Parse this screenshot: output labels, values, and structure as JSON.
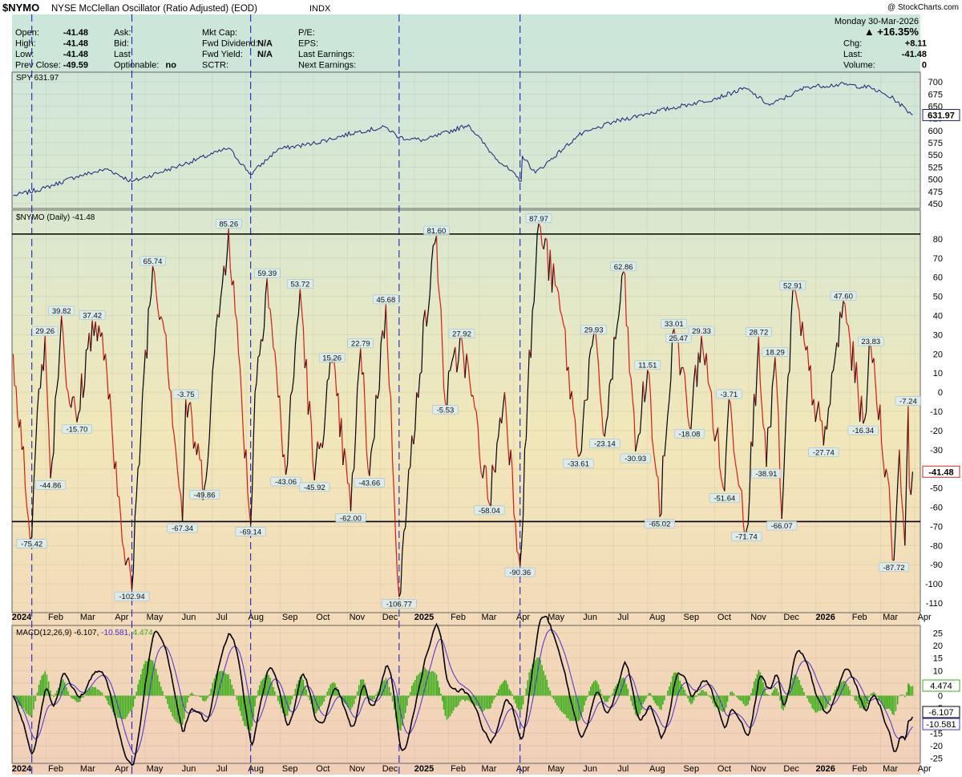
{
  "header": {
    "symbol": "$NYMO",
    "name": "NYSE McClellan Oscillator (Ratio Adjusted) (EOD)",
    "exchange": "INDX",
    "watermark": "@ StockCharts.com",
    "date": "Monday  30-Mar-2026",
    "pct_change": "▲ +16.35%",
    "quote_fields": [
      {
        "k": "Open:",
        "v": "-41.48"
      },
      {
        "k": "High:",
        "v": "-41.48"
      },
      {
        "k": "Low:",
        "v": "-41.48"
      },
      {
        "k": "Prev Close:",
        "v": "-49.59"
      },
      {
        "k": "Ask:",
        "v": ""
      },
      {
        "k": "Bid:",
        "v": ""
      },
      {
        "k": "Last",
        "v": ""
      },
      {
        "k": "Optionable:",
        "v": "no"
      },
      {
        "k": "Mkt Cap:",
        "v": ""
      },
      {
        "k": "Fwd Dividend:",
        "v": "N/A"
      },
      {
        "k": "Fwd Yield:",
        "v": "N/A"
      },
      {
        "k": "SCTR:",
        "v": ""
      },
      {
        "k": "P/E:",
        "v": ""
      },
      {
        "k": "EPS:",
        "v": ""
      },
      {
        "k": "Last Earnings:",
        "v": ""
      },
      {
        "k": "Next Earnings:",
        "v": ""
      },
      {
        "k": "Chg:",
        "v": "+8.11"
      },
      {
        "k": "Last:",
        "v": "-41.48"
      },
      {
        "k": "Volume:",
        "v": "0"
      }
    ]
  },
  "colors": {
    "price_line": "#1a237e",
    "nymo_up": "#000000",
    "nymo_down": "#d81b10",
    "macd_line": "#000000",
    "signal_line": "#4a2fd6",
    "histogram": "#3fae1b",
    "marker_line": "#1a24c8",
    "horizontal_line": "#000000"
  },
  "chart_data": [
    {
      "type": "line",
      "title": "SPY 631.97",
      "legend": "SPY 631.97",
      "last_value_label": "631.97",
      "ylim": [
        440,
        720
      ],
      "y_ticks": [
        450,
        475,
        500,
        525,
        550,
        575,
        600,
        625,
        650,
        675,
        700
      ],
      "series": [
        {
          "points": [
            [
              "2024-01-02",
              466
            ],
            [
              "2024-01-31",
              482
            ],
            [
              "2024-02-29",
              506
            ],
            [
              "2024-03-28",
              521
            ],
            [
              "2024-04-19",
              495
            ],
            [
              "2024-05-31",
              527
            ],
            [
              "2024-07-16",
              564
            ],
            [
              "2024-08-05",
              510
            ],
            [
              "2024-08-30",
              562
            ],
            [
              "2024-09-30",
              573
            ],
            [
              "2024-11-11",
              598
            ],
            [
              "2024-12-06",
              607
            ],
            [
              "2024-12-18",
              586
            ],
            [
              "2025-01-10",
              580
            ],
            [
              "2025-02-19",
              612
            ],
            [
              "2025-03-13",
              551
            ],
            [
              "2025-04-08",
              496
            ],
            [
              "2025-04-09",
              548
            ],
            [
              "2025-04-21",
              513
            ],
            [
              "2025-05-30",
              590
            ],
            [
              "2025-06-30",
              617
            ],
            [
              "2025-07-31",
              635
            ],
            [
              "2025-09-30",
              665
            ],
            [
              "2025-10-29",
              687
            ],
            [
              "2025-11-20",
              652
            ],
            [
              "2025-12-24",
              690
            ],
            [
              "2026-01-27",
              695
            ],
            [
              "2026-02-20",
              688
            ],
            [
              "2026-03-13",
              665
            ],
            [
              "2026-03-30",
              631.97
            ]
          ]
        }
      ]
    },
    {
      "type": "line",
      "title": "$NYMO (Daily) -41.48",
      "legend": "$NYMO (Daily) -41.48",
      "last_value_label": "-41.48",
      "ylim": [
        -115,
        95
      ],
      "y_ticks": [
        -110,
        -100,
        -90,
        -80,
        -70,
        -60,
        -50,
        -40,
        -30,
        -20,
        -10,
        0,
        10,
        20,
        30,
        40,
        50,
        60,
        70,
        80
      ],
      "horizontal_lines": [
        82.5,
        -67.5
      ],
      "vertical_markers": [
        "2024-01-19",
        "2024-04-19",
        "2024-08-05",
        "2024-12-18",
        "2025-04-07"
      ],
      "x_ticks": [
        "2024",
        "Feb",
        "Mar",
        "Apr",
        "May",
        "Jun",
        "Jul",
        "Aug",
        "Sep",
        "Oct",
        "Nov",
        "Dec",
        "2025",
        "Feb",
        "Mar",
        "Apr",
        "May",
        "Jun",
        "Jul",
        "Aug",
        "Sep",
        "Oct",
        "Nov",
        "Dec",
        "2026",
        "Feb",
        "Mar",
        "Apr"
      ],
      "series": [
        {
          "points": [
            [
              "2024-01-02",
              20
            ],
            [
              "2024-01-10",
              -30
            ],
            [
              "2024-01-19",
              -75.42
            ],
            [
              "2024-01-24",
              -10
            ],
            [
              "2024-01-31",
              29.26
            ],
            [
              "2024-02-05",
              -44.86
            ],
            [
              "2024-02-15",
              39.82
            ],
            [
              "2024-02-21",
              0
            ],
            [
              "2024-02-29",
              -15.7
            ],
            [
              "2024-03-14",
              37.42
            ],
            [
              "2024-03-26",
              20
            ],
            [
              "2024-04-03",
              -40
            ],
            [
              "2024-04-19",
              -102.94
            ],
            [
              "2024-04-30",
              10
            ],
            [
              "2024-05-08",
              65.74
            ],
            [
              "2024-05-20",
              30
            ],
            [
              "2024-06-04",
              -67.34
            ],
            [
              "2024-06-07",
              -3.75
            ],
            [
              "2024-06-24",
              -49.86
            ],
            [
              "2024-07-03",
              20
            ],
            [
              "2024-07-16",
              85.26
            ],
            [
              "2024-07-25",
              20
            ],
            [
              "2024-08-05",
              -69.14
            ],
            [
              "2024-08-09",
              0
            ],
            [
              "2024-08-20",
              59.39
            ],
            [
              "2024-09-06",
              -43.06
            ],
            [
              "2024-09-19",
              53.72
            ],
            [
              "2024-10-02",
              -45.92
            ],
            [
              "2024-10-18",
              15.26
            ],
            [
              "2024-11-04",
              -62
            ],
            [
              "2024-11-13",
              22.79
            ],
            [
              "2024-11-21",
              -43.66
            ],
            [
              "2024-12-06",
              45.68
            ],
            [
              "2024-12-18",
              -106.77
            ],
            [
              "2025-01-03",
              0
            ],
            [
              "2025-01-21",
              81.6
            ],
            [
              "2025-01-29",
              -5.53
            ],
            [
              "2025-02-13",
              27.92
            ],
            [
              "2025-03-10",
              -58.04
            ],
            [
              "2025-03-24",
              0
            ],
            [
              "2025-04-07",
              -90.36
            ],
            [
              "2025-04-14",
              0
            ],
            [
              "2025-04-24",
              87.97
            ],
            [
              "2025-05-15",
              40
            ],
            [
              "2025-05-30",
              -33.61
            ],
            [
              "2025-06-13",
              29.93
            ],
            [
              "2025-06-23",
              -23.14
            ],
            [
              "2025-07-10",
              62.86
            ],
            [
              "2025-07-21",
              -30.93
            ],
            [
              "2025-08-01",
              11.51
            ],
            [
              "2025-08-12",
              -65.02
            ],
            [
              "2025-08-25",
              33.01
            ],
            [
              "2025-08-29",
              25.47
            ],
            [
              "2025-09-08",
              -18.08
            ],
            [
              "2025-09-19",
              29.33
            ],
            [
              "2025-10-10",
              -51.64
            ],
            [
              "2025-10-14",
              -3.71
            ],
            [
              "2025-10-30",
              -71.74
            ],
            [
              "2025-11-10",
              28.72
            ],
            [
              "2025-11-17",
              -38.91
            ],
            [
              "2025-11-25",
              18.29
            ],
            [
              "2025-12-01",
              -66.07
            ],
            [
              "2025-12-11",
              52.91
            ],
            [
              "2026-01-08",
              -27.74
            ],
            [
              "2026-01-26",
              47.6
            ],
            [
              "2026-02-13",
              -16.34
            ],
            [
              "2026-02-20",
              23.83
            ],
            [
              "2026-03-06",
              -40
            ],
            [
              "2026-03-13",
              -87.72
            ],
            [
              "2026-03-18",
              -30
            ],
            [
              "2026-03-23",
              -80
            ],
            [
              "2026-03-26",
              -7.24
            ],
            [
              "2026-03-27",
              -49.59
            ],
            [
              "2026-03-30",
              -41.48
            ]
          ]
        }
      ],
      "annotations": [
        {
          "date": "2024-01-19",
          "value": -75.42,
          "text": "-75.42",
          "pos": "below"
        },
        {
          "date": "2024-01-31",
          "value": 29.26,
          "text": "29.26",
          "pos": "above"
        },
        {
          "date": "2024-02-05",
          "value": -44.86,
          "text": "-44.86",
          "pos": "below"
        },
        {
          "date": "2024-02-15",
          "value": 39.82,
          "text": "39.82",
          "pos": "above"
        },
        {
          "date": "2024-02-29",
          "value": -15.7,
          "text": "-15.70",
          "pos": "below"
        },
        {
          "date": "2024-03-14",
          "value": 37.42,
          "text": "37.42",
          "pos": "above"
        },
        {
          "date": "2024-04-19",
          "value": -102.94,
          "text": "-102.94",
          "pos": "below"
        },
        {
          "date": "2024-05-08",
          "value": 65.74,
          "text": "65.74",
          "pos": "above"
        },
        {
          "date": "2024-06-04",
          "value": -67.34,
          "text": "-67.34",
          "pos": "below"
        },
        {
          "date": "2024-06-07",
          "value": -3.75,
          "text": "-3.75",
          "pos": "above"
        },
        {
          "date": "2024-06-24",
          "value": -49.86,
          "text": "-49.86",
          "pos": "below"
        },
        {
          "date": "2024-07-16",
          "value": 85.26,
          "text": "85.26",
          "pos": "above"
        },
        {
          "date": "2024-08-05",
          "value": -69.14,
          "text": "-69.14",
          "pos": "below"
        },
        {
          "date": "2024-08-20",
          "value": 59.39,
          "text": "59.39",
          "pos": "above"
        },
        {
          "date": "2024-09-06",
          "value": -43.06,
          "text": "-43.06",
          "pos": "below"
        },
        {
          "date": "2024-09-19",
          "value": 53.72,
          "text": "53.72",
          "pos": "above"
        },
        {
          "date": "2024-10-02",
          "value": -45.92,
          "text": "-45.92",
          "pos": "below"
        },
        {
          "date": "2024-10-18",
          "value": 15.26,
          "text": "15.26",
          "pos": "above"
        },
        {
          "date": "2024-11-04",
          "value": -62,
          "text": "-62.00",
          "pos": "below"
        },
        {
          "date": "2024-11-13",
          "value": 22.79,
          "text": "22.79",
          "pos": "above"
        },
        {
          "date": "2024-11-21",
          "value": -43.66,
          "text": "-43.66",
          "pos": "below"
        },
        {
          "date": "2024-12-06",
          "value": 45.68,
          "text": "45.68",
          "pos": "above"
        },
        {
          "date": "2024-12-18",
          "value": -106.77,
          "text": "-106.77",
          "pos": "below"
        },
        {
          "date": "2025-01-21",
          "value": 81.6,
          "text": "81.60",
          "pos": "above"
        },
        {
          "date": "2025-01-29",
          "value": -5.53,
          "text": "-5.53",
          "pos": "below"
        },
        {
          "date": "2025-02-13",
          "value": 27.92,
          "text": "27.92",
          "pos": "above"
        },
        {
          "date": "2025-03-10",
          "value": -58.04,
          "text": "-58.04",
          "pos": "below"
        },
        {
          "date": "2025-04-07",
          "value": -90.36,
          "text": "-90.36",
          "pos": "below"
        },
        {
          "date": "2025-04-24",
          "value": 87.97,
          "text": "87.97",
          "pos": "above"
        },
        {
          "date": "2025-05-30",
          "value": -33.61,
          "text": "-33.61",
          "pos": "below"
        },
        {
          "date": "2025-06-13",
          "value": 29.93,
          "text": "29.93",
          "pos": "above"
        },
        {
          "date": "2025-06-23",
          "value": -23.14,
          "text": "-23.14",
          "pos": "below"
        },
        {
          "date": "2025-07-10",
          "value": 62.86,
          "text": "62.86",
          "pos": "above"
        },
        {
          "date": "2025-07-21",
          "value": -30.93,
          "text": "-30.93",
          "pos": "below"
        },
        {
          "date": "2025-08-01",
          "value": 11.51,
          "text": "11.51",
          "pos": "above"
        },
        {
          "date": "2025-08-12",
          "value": -65.02,
          "text": "-65.02",
          "pos": "below"
        },
        {
          "date": "2025-08-25",
          "value": 33.01,
          "text": "33.01",
          "pos": "above"
        },
        {
          "date": "2025-08-29",
          "value": 25.47,
          "text": "25.47",
          "pos": "above"
        },
        {
          "date": "2025-09-08",
          "value": -18.08,
          "text": "-18.08",
          "pos": "below"
        },
        {
          "date": "2025-09-19",
          "value": 29.33,
          "text": "29.33",
          "pos": "above"
        },
        {
          "date": "2025-10-10",
          "value": -51.64,
          "text": "-51.64",
          "pos": "below"
        },
        {
          "date": "2025-10-14",
          "value": -3.71,
          "text": "-3.71",
          "pos": "above"
        },
        {
          "date": "2025-10-30",
          "value": -71.74,
          "text": "-71.74",
          "pos": "below"
        },
        {
          "date": "2025-11-10",
          "value": 28.72,
          "text": "28.72",
          "pos": "above"
        },
        {
          "date": "2025-11-17",
          "value": -38.91,
          "text": "-38.91",
          "pos": "below"
        },
        {
          "date": "2025-11-25",
          "value": 18.29,
          "text": "18.29",
          "pos": "above"
        },
        {
          "date": "2025-12-01",
          "value": -66.07,
          "text": "-66.07",
          "pos": "below"
        },
        {
          "date": "2025-12-11",
          "value": 52.91,
          "text": "52.91",
          "pos": "above"
        },
        {
          "date": "2026-01-08",
          "value": -27.74,
          "text": "-27.74",
          "pos": "below"
        },
        {
          "date": "2026-01-26",
          "value": 47.6,
          "text": "47.60",
          "pos": "above"
        },
        {
          "date": "2026-02-13",
          "value": -16.34,
          "text": "-16.34",
          "pos": "below"
        },
        {
          "date": "2026-02-20",
          "value": 23.83,
          "text": "23.83",
          "pos": "above"
        },
        {
          "date": "2026-03-13",
          "value": -87.72,
          "text": "-87.72",
          "pos": "below"
        },
        {
          "date": "2026-03-26",
          "value": -7.24,
          "text": "-7.24",
          "pos": "above"
        }
      ]
    },
    {
      "type": "line",
      "title": "MACD(12,26,9) -6.107, -10.581, 4.474",
      "legend": [
        "MACD(12,26,9) -6.107,",
        "-10.581",
        "4.474"
      ],
      "last_value_labels": [
        "4.474",
        "-6.107",
        "-10.581"
      ],
      "ylim": [
        -27,
        28
      ],
      "y_ticks": [
        -25,
        -20,
        -15,
        -10,
        -5,
        0,
        5,
        10,
        15,
        20,
        25
      ],
      "x_ticks": [
        "2024",
        "Feb",
        "Mar",
        "Apr",
        "May",
        "Jun",
        "Jul",
        "Aug",
        "Sep",
        "Oct",
        "Nov",
        "Dec",
        "2025",
        "Feb",
        "Mar",
        "Apr",
        "May",
        "Jun",
        "Jul",
        "Aug",
        "Sep",
        "Oct",
        "Nov",
        "Dec",
        "2026",
        "Feb",
        "Mar",
        "Apr"
      ],
      "series": [
        {
          "name": "MACD",
          "computed_from": "$NYMO"
        },
        {
          "name": "Signal"
        },
        {
          "name": "Histogram"
        }
      ]
    }
  ]
}
